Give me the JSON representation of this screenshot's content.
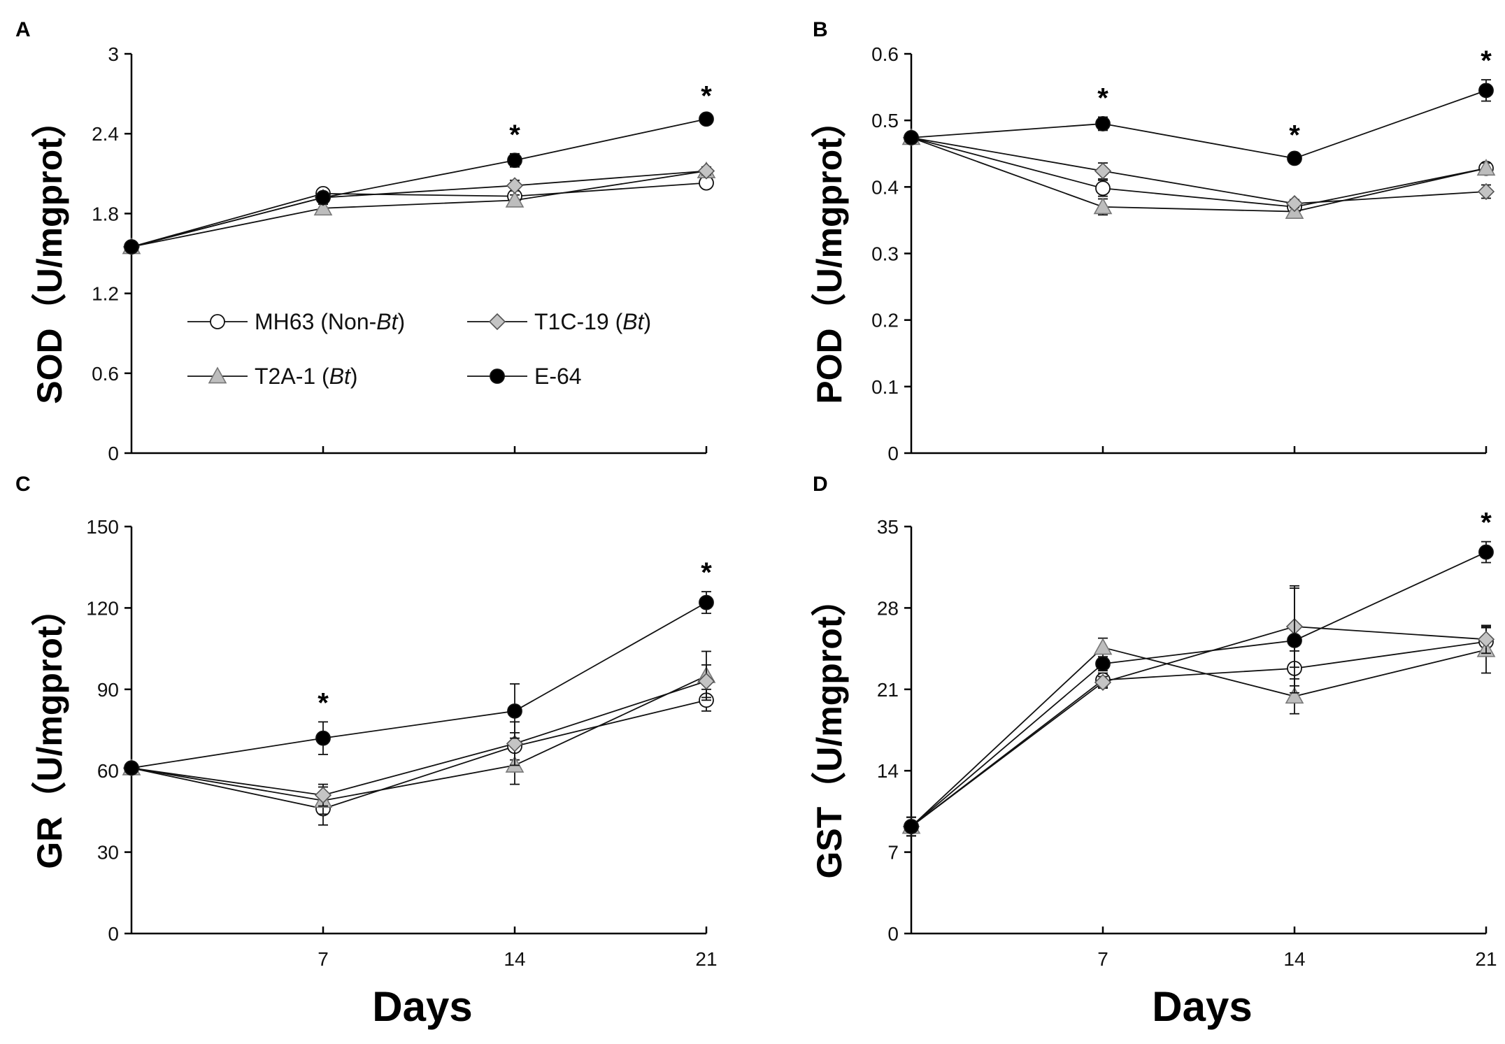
{
  "x_label": "Days",
  "legend": [
    {
      "key": "mh63",
      "text": "MH63 (Non-",
      "italic": "Bt",
      "tail": ")"
    },
    {
      "key": "t1c19",
      "text": "T1C-19 (",
      "italic": "Bt",
      "tail": ")"
    },
    {
      "key": "t2a1",
      "text": "T2A-1 (",
      "italic": "Bt",
      "tail": ")"
    },
    {
      "key": "e64",
      "text": "E-64",
      "italic": "",
      "tail": ""
    }
  ],
  "series_styles": {
    "mh63": {
      "marker": "circle",
      "fill": "#ffffff"
    },
    "t1c19": {
      "marker": "diamond",
      "fill": "#c4c4c4"
    },
    "t2a1": {
      "marker": "triangle",
      "fill": "#bdbdbd"
    },
    "e64": {
      "marker": "circle",
      "fill": "#000000"
    }
  },
  "chart_data": [
    {
      "panel": "A",
      "type": "line",
      "ylabel": "SOD（U/mgprot）",
      "x": [
        0,
        7,
        14,
        21
      ],
      "x_ticks": [
        "7",
        "14",
        "21"
      ],
      "ylim": [
        0,
        3
      ],
      "y_ticks": [
        "0",
        "0.6",
        "1.2",
        "1.8",
        "2.4",
        "3"
      ],
      "significant": [
        14,
        21
      ],
      "series": [
        {
          "key": "mh63",
          "values": [
            1.55,
            1.95,
            1.93,
            2.03
          ],
          "err": [
            0.03,
            0.03,
            0.04,
            0.03
          ]
        },
        {
          "key": "t1c19",
          "values": [
            1.55,
            1.92,
            2.01,
            2.12
          ],
          "err": [
            0.03,
            0.03,
            0.04,
            0.03
          ]
        },
        {
          "key": "t2a1",
          "values": [
            1.55,
            1.84,
            1.9,
            2.12
          ],
          "err": [
            0.03,
            0.03,
            0.04,
            0.03
          ]
        },
        {
          "key": "e64",
          "values": [
            1.55,
            1.92,
            2.2,
            2.51
          ],
          "err": [
            0.03,
            0.03,
            0.05,
            0.03
          ]
        }
      ]
    },
    {
      "panel": "B",
      "type": "line",
      "ylabel": "POD（U/mgprot）",
      "x": [
        0,
        7,
        14,
        21
      ],
      "x_ticks": [
        "7",
        "14",
        "21"
      ],
      "ylim": [
        0,
        0.6
      ],
      "y_ticks": [
        "0",
        "0.1",
        "0.2",
        "0.3",
        "0.4",
        "0.5",
        "0.6"
      ],
      "significant": [
        7,
        14,
        21
      ],
      "series": [
        {
          "key": "mh63",
          "values": [
            0.474,
            0.398,
            0.37,
            0.428
          ],
          "err": [
            0.006,
            0.012,
            0.006,
            0.008
          ]
        },
        {
          "key": "t1c19",
          "values": [
            0.474,
            0.424,
            0.375,
            0.393
          ],
          "err": [
            0.006,
            0.012,
            0.006,
            0.01
          ]
        },
        {
          "key": "t2a1",
          "values": [
            0.474,
            0.37,
            0.363,
            0.428
          ],
          "err": [
            0.006,
            0.012,
            0.006,
            0.008
          ]
        },
        {
          "key": "e64",
          "values": [
            0.474,
            0.495,
            0.443,
            0.545
          ],
          "err": [
            0.006,
            0.01,
            0.006,
            0.016
          ]
        }
      ]
    },
    {
      "panel": "C",
      "type": "line",
      "ylabel": "GR（U/mgprot）",
      "x": [
        0,
        7,
        14,
        21
      ],
      "x_ticks": [
        "7",
        "14",
        "21"
      ],
      "ylim": [
        0,
        150
      ],
      "y_ticks": [
        "0",
        "30",
        "60",
        "90",
        "120",
        "150"
      ],
      "significant": [
        7,
        21
      ],
      "series": [
        {
          "key": "mh63",
          "values": [
            61,
            46,
            69,
            86
          ],
          "err": [
            1.5,
            6,
            5,
            4
          ]
        },
        {
          "key": "t1c19",
          "values": [
            61,
            51,
            70,
            93
          ],
          "err": [
            1.5,
            4,
            8,
            6
          ]
        },
        {
          "key": "t2a1",
          "values": [
            61,
            49,
            62,
            95
          ],
          "err": [
            1.5,
            5,
            7,
            9
          ]
        },
        {
          "key": "e64",
          "values": [
            61,
            72,
            82,
            122
          ],
          "err": [
            1.5,
            6,
            10,
            4
          ]
        }
      ]
    },
    {
      "panel": "D",
      "type": "line",
      "ylabel": "GST（U/mgprot）",
      "x": [
        0,
        7,
        14,
        21
      ],
      "x_ticks": [
        "7",
        "14",
        "21"
      ],
      "ylim": [
        0,
        35
      ],
      "y_ticks": [
        "0",
        "7",
        "14",
        "21",
        "28",
        "35"
      ],
      "significant": [
        21
      ],
      "series": [
        {
          "key": "mh63",
          "values": [
            9.2,
            21.8,
            22.8,
            25.1
          ],
          "err": [
            0.8,
            0.6,
            1.5,
            1.2
          ]
        },
        {
          "key": "t1c19",
          "values": [
            9.2,
            21.6,
            26.4,
            25.3
          ],
          "err": [
            0.8,
            0.5,
            3.5,
            1.2
          ]
        },
        {
          "key": "t2a1",
          "values": [
            9.2,
            24.6,
            20.4,
            24.4
          ],
          "err": [
            0.8,
            0.8,
            1.5,
            2.0
          ]
        },
        {
          "key": "e64",
          "values": [
            9.2,
            23.2,
            25.2,
            32.8
          ],
          "err": [
            0.8,
            0.6,
            4.5,
            0.9
          ]
        }
      ]
    }
  ]
}
